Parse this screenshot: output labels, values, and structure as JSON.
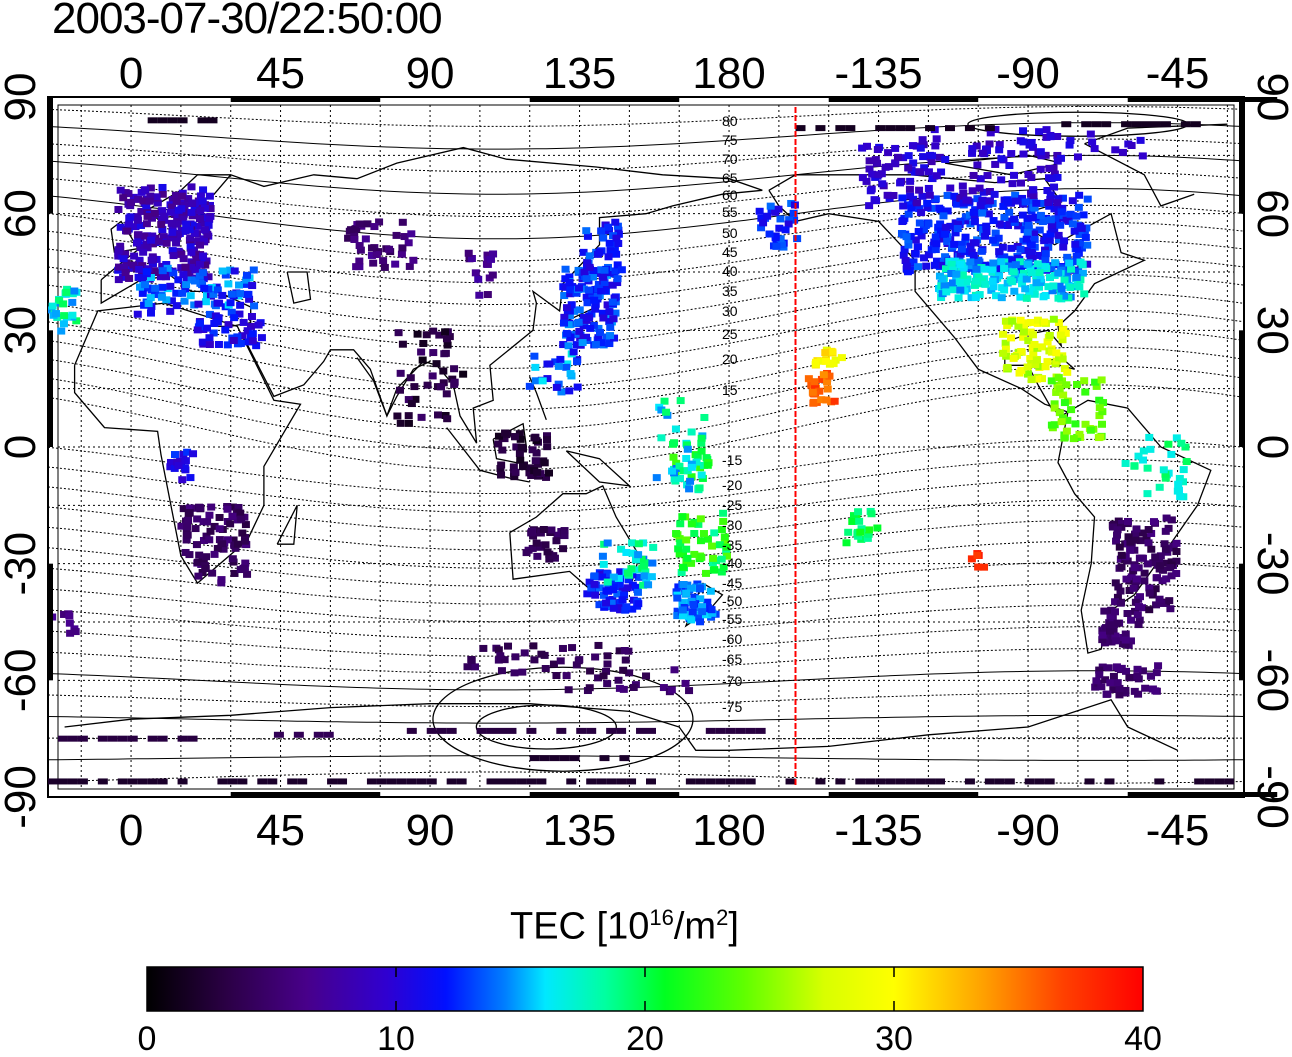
{
  "title": "2003-07-30/22:50:00",
  "map": {
    "lon_ticks_top": [
      "0",
      "45",
      "90",
      "135",
      "180",
      "-135",
      "-90",
      "-45"
    ],
    "lon_ticks_bottom": [
      "0",
      "45",
      "90",
      "135",
      "180",
      "-135",
      "-90",
      "-45"
    ],
    "lat_ticks_left": [
      "90",
      "60",
      "30",
      "0",
      "-30",
      "-60",
      "-90"
    ],
    "lat_ticks_right": [
      "90",
      "60",
      "30",
      "0",
      "-30",
      "-60",
      "-90"
    ],
    "terminator_color": "#ff0000",
    "terminator_lon": -160,
    "contour_labels_north": [
      "80",
      "75",
      "70",
      "65",
      "60",
      "55",
      "50",
      "45",
      "40",
      "35",
      "30",
      "25",
      "20",
      "15"
    ],
    "contour_labels_south": [
      "-15",
      "-20",
      "-25",
      "-30",
      "-35",
      "-40",
      "-45",
      "-50",
      "-55",
      "-60",
      "-65",
      "-70",
      "-75"
    ]
  },
  "colorbar": {
    "title_main": "TEC  [10",
    "title_exp1": "16",
    "title_mid": "/m",
    "title_exp2": "2",
    "title_end": "]",
    "min": 0,
    "max": 40,
    "tick_labels": [
      "0",
      "10",
      "20",
      "30",
      "40"
    ],
    "colors": [
      "#000000",
      "#3a0060",
      "#5500aa",
      "#2020ff",
      "#0060ff",
      "#00c0ff",
      "#00ffe0",
      "#00ff60",
      "#40ff00",
      "#c0ff00",
      "#ffff00",
      "#ffa000",
      "#ff4000",
      "#ff0000"
    ]
  }
}
